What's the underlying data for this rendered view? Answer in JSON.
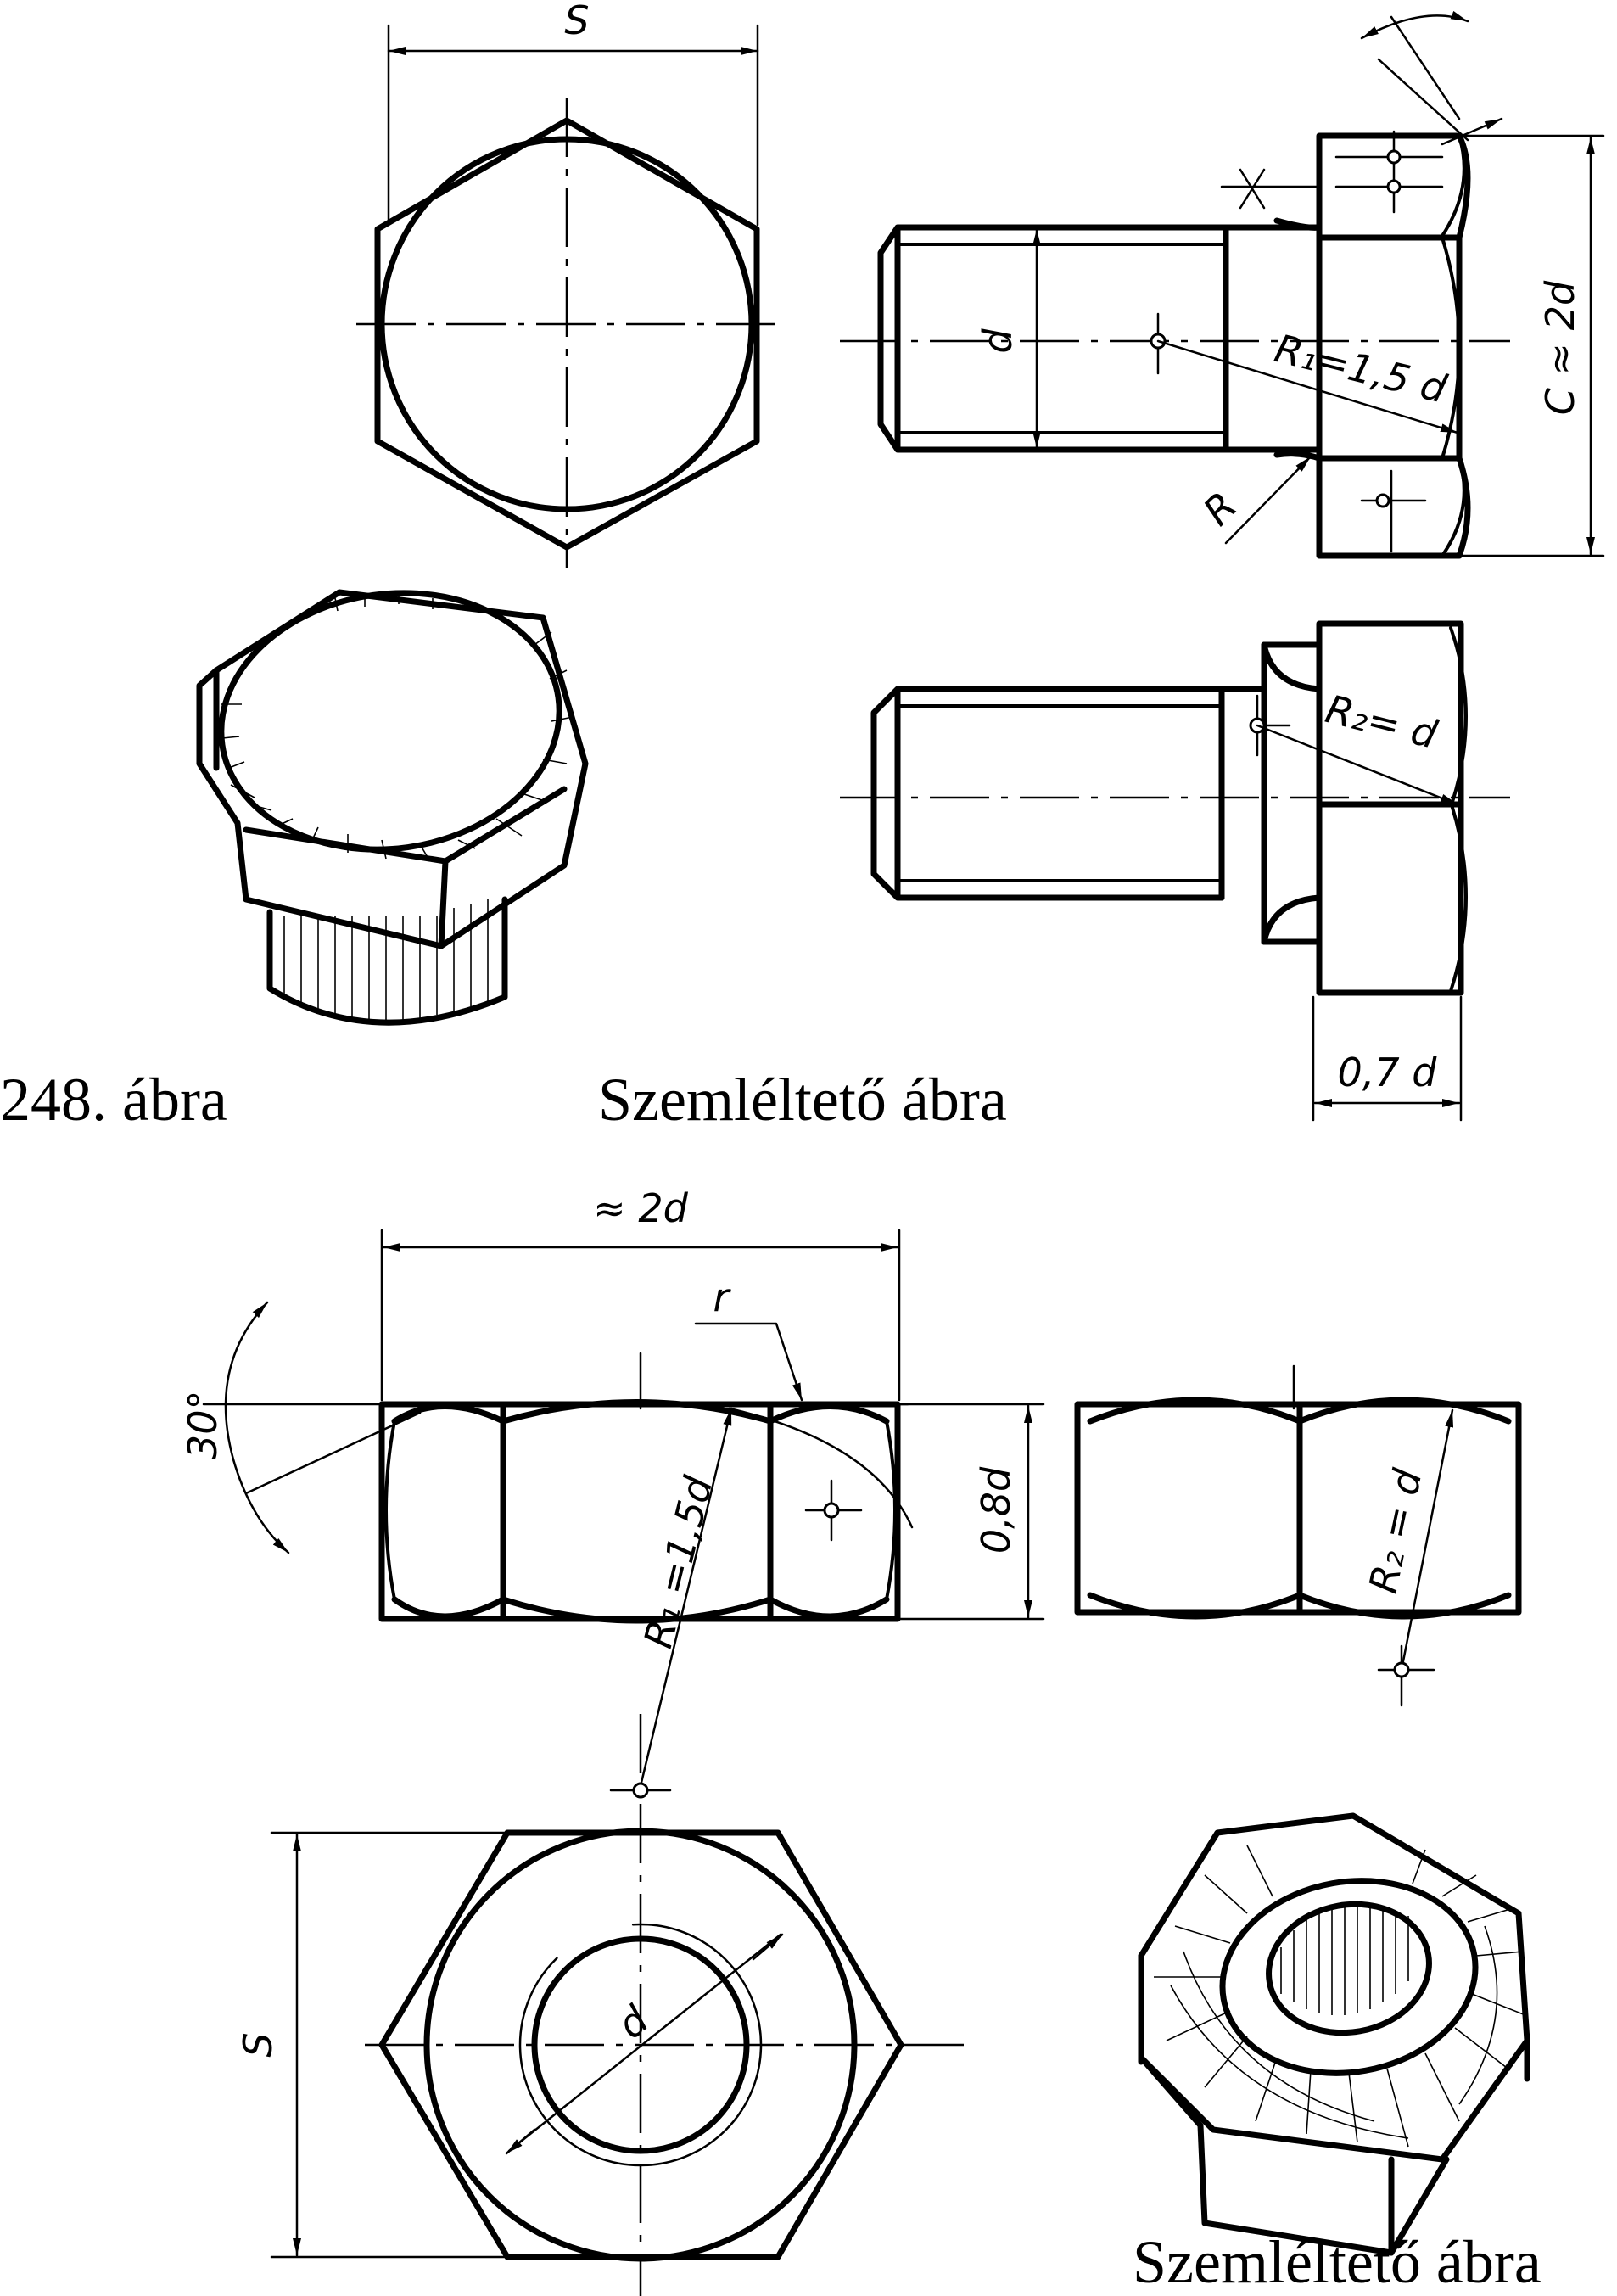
{
  "bolt": {
    "dim_s": "S",
    "dim_d": "d",
    "dim_r1": "R₁=1,5 d",
    "dim_c": "C ≈ 2d",
    "dim_r": "R",
    "dim_x": "X",
    "dim_r2": "R₂= d",
    "dim_head_h": "0,7 d"
  },
  "nut": {
    "dim_width": "≈ 2d",
    "dim_r_small": "r",
    "dim_angle": "30°",
    "dim_r1": "R₁ =1,5d",
    "dim_height": "0,8d",
    "dim_r2": "R₂ = d",
    "dim_s": "S",
    "dim_d": "d"
  },
  "captions": {
    "figure_number": "248. ábra",
    "pictorial_1": "Szemléltető ábra",
    "pictorial_2": "Szemléltető ábra"
  }
}
